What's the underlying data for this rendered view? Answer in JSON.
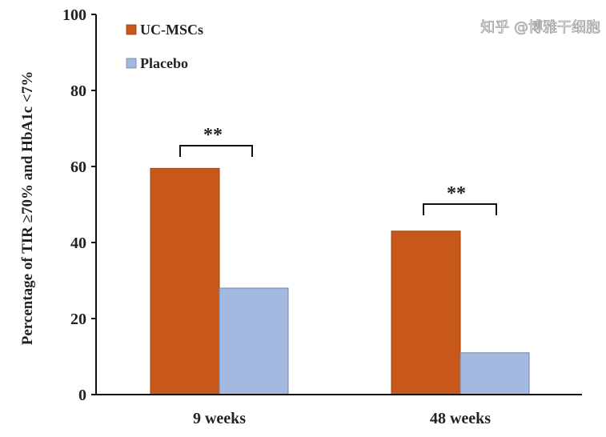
{
  "chart_data": {
    "type": "bar",
    "title": "",
    "xlabel": "",
    "ylabel": "Percentage of TIR ≥70% and HbA1c <7%",
    "ylim": [
      0,
      100
    ],
    "yticks": [
      "0",
      "20",
      "40",
      "60",
      "80",
      "100"
    ],
    "categories": [
      "9 weeks",
      "48 weeks"
    ],
    "series": [
      {
        "name": "UC-MSCs",
        "color": "#C8571A",
        "values": [
          59.5,
          43
        ]
      },
      {
        "name": "Placebo",
        "color": "#A4B9E0",
        "values": [
          28,
          11
        ]
      }
    ],
    "annotations": [
      "**",
      "**"
    ],
    "legend": "top-left",
    "grid": false
  },
  "watermark": "知乎 @博雅干细胞"
}
